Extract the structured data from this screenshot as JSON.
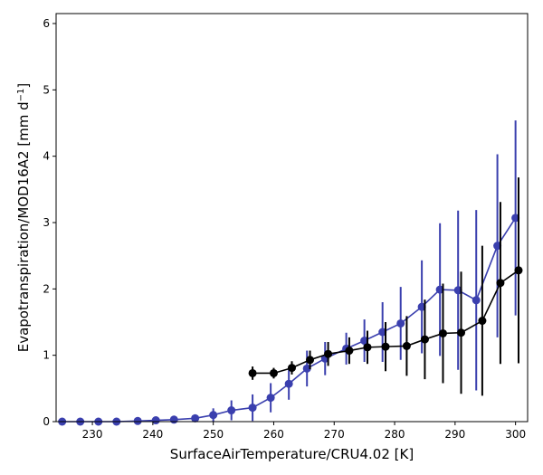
{
  "chart_data": {
    "type": "line",
    "xlabel": "SurfaceAirTemperature/CRU4.02 [K]",
    "ylabel_main": "Evapotranspiration/MOD16A2 [mm d",
    "ylabel_sup": "−1",
    "ylabel_end": "]",
    "xlim": [
      224,
      302
    ],
    "ylim": [
      0,
      6.15
    ],
    "xticks": [
      230,
      240,
      250,
      260,
      270,
      280,
      290,
      300
    ],
    "yticks": [
      0,
      1,
      2,
      3,
      4,
      5,
      6
    ],
    "grid": false,
    "legend": "none",
    "series": [
      {
        "color": "#3a3fae",
        "x": [
          225,
          228,
          231,
          234,
          237.5,
          240.5,
          243.5,
          247,
          250,
          253,
          256.5,
          259.5,
          262.5,
          265.5,
          268.5,
          272,
          275,
          278,
          281,
          284.5,
          287.5,
          290.5,
          293.5,
          297,
          300
        ],
        "y": [
          0.0,
          0.0,
          0.0,
          0.0,
          0.01,
          0.02,
          0.03,
          0.05,
          0.1,
          0.17,
          0.21,
          0.36,
          0.57,
          0.8,
          0.95,
          1.1,
          1.22,
          1.35,
          1.48,
          1.73,
          1.99,
          1.98,
          1.83,
          2.65,
          3.07
        ],
        "err": [
          0.0,
          0.0,
          0.0,
          0.01,
          0.02,
          0.03,
          0.04,
          0.06,
          0.1,
          0.15,
          0.2,
          0.22,
          0.24,
          0.27,
          0.25,
          0.24,
          0.32,
          0.45,
          0.55,
          0.7,
          1.0,
          1.2,
          1.36,
          1.38,
          1.47
        ]
      },
      {
        "color": "#000000",
        "x": [
          256.5,
          260,
          263,
          266,
          269,
          272.5,
          275.5,
          278.5,
          282,
          285,
          288,
          291,
          294.5,
          297.5,
          300.5
        ],
        "y": [
          0.73,
          0.73,
          0.81,
          0.93,
          1.02,
          1.07,
          1.12,
          1.13,
          1.14,
          1.24,
          1.33,
          1.34,
          1.52,
          2.09,
          2.28
        ],
        "err": [
          0.1,
          0.08,
          0.1,
          0.14,
          0.18,
          0.2,
          0.25,
          0.37,
          0.45,
          0.6,
          0.75,
          0.92,
          1.13,
          1.22,
          1.4
        ]
      }
    ]
  }
}
